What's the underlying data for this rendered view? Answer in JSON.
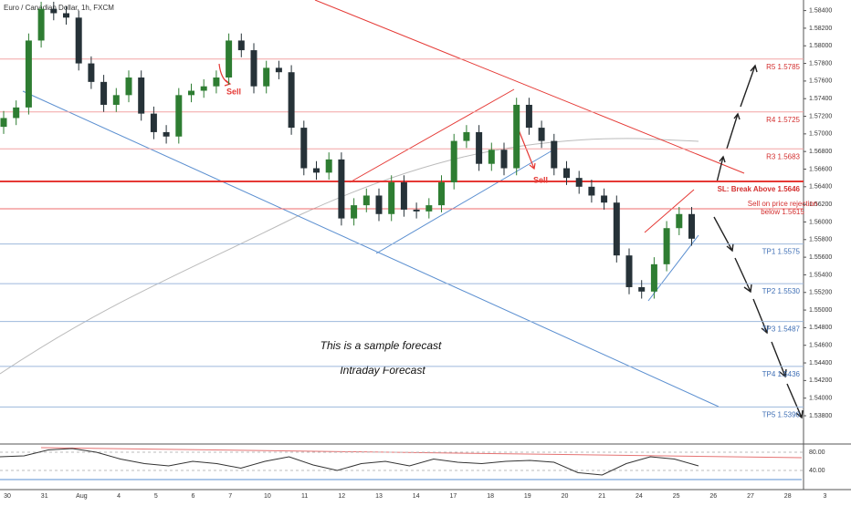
{
  "chart_data": {
    "type": "candlestick",
    "title": "Euro / Canadian Dollar, 1h, FXCM",
    "annotations": [
      "This is a sample forecast",
      "Intraday Forecast"
    ],
    "sell_labels": [
      "Sell",
      "Sell"
    ],
    "up_color": "#2e7d32",
    "down_color": "#263238",
    "open": [
      1.5708,
      1.5718,
      1.573,
      1.5806,
      1.5842,
      1.5837,
      1.5832,
      1.578,
      1.5759,
      1.5733,
      1.5744,
      1.5764,
      1.5723,
      1.5702,
      1.5697,
      1.5744,
      1.5749,
      1.5754,
      1.5764,
      1.5806,
      1.5795,
      1.5754,
      1.5775,
      1.577,
      1.5707,
      1.5661,
      1.5656,
      1.5671,
      1.5604,
      1.5619,
      1.563,
      1.5609,
      1.5645,
      1.5614,
      1.5612,
      1.5619,
      1.5645,
      1.5692,
      1.5702,
      1.5666,
      1.5682,
      1.5661,
      1.5733,
      1.5707,
      1.5692,
      1.5661,
      1.565,
      1.564,
      1.563,
      1.5622,
      1.5562,
      1.5526,
      1.5521,
      1.5552,
      1.5593,
      1.5609
    ],
    "high": [
      1.5726,
      1.5738,
      1.5814,
      1.585,
      1.585,
      1.5845,
      1.584,
      1.5788,
      1.5767,
      1.5752,
      1.5772,
      1.5772,
      1.5731,
      1.571,
      1.5752,
      1.5757,
      1.5762,
      1.5772,
      1.5814,
      1.5814,
      1.5803,
      1.5783,
      1.5783,
      1.5778,
      1.5715,
      1.5669,
      1.5679,
      1.5679,
      1.5627,
      1.5638,
      1.5638,
      1.5653,
      1.5653,
      1.5622,
      1.5627,
      1.5653,
      1.57,
      1.571,
      1.571,
      1.569,
      1.569,
      1.5741,
      1.5741,
      1.5715,
      1.57,
      1.5669,
      1.5658,
      1.5648,
      1.5638,
      1.563,
      1.557,
      1.5534,
      1.556,
      1.5601,
      1.5617,
      1.5617
    ],
    "low": [
      1.57,
      1.571,
      1.5722,
      1.5798,
      1.5829,
      1.5824,
      1.5772,
      1.5751,
      1.5725,
      1.5725,
      1.5736,
      1.5715,
      1.5694,
      1.5689,
      1.5689,
      1.5736,
      1.5741,
      1.5746,
      1.5756,
      1.5787,
      1.5746,
      1.5746,
      1.5762,
      1.5699,
      1.5653,
      1.5648,
      1.5648,
      1.5596,
      1.5596,
      1.5611,
      1.5601,
      1.5601,
      1.5606,
      1.5604,
      1.5604,
      1.5611,
      1.5637,
      1.5684,
      1.5658,
      1.5658,
      1.5653,
      1.5653,
      1.5699,
      1.5684,
      1.5653,
      1.5642,
      1.5632,
      1.5622,
      1.5614,
      1.5554,
      1.5518,
      1.5513,
      1.5513,
      1.5544,
      1.5585,
      1.5573
    ],
    "close": [
      1.5718,
      1.573,
      1.5806,
      1.5842,
      1.5837,
      1.5832,
      1.578,
      1.5759,
      1.5733,
      1.5744,
      1.5764,
      1.5723,
      1.5702,
      1.5697,
      1.5744,
      1.5749,
      1.5754,
      1.5764,
      1.5806,
      1.5795,
      1.5754,
      1.5775,
      1.577,
      1.5707,
      1.5661,
      1.5656,
      1.5671,
      1.5604,
      1.5619,
      1.563,
      1.5609,
      1.5645,
      1.5614,
      1.5612,
      1.5619,
      1.5645,
      1.5692,
      1.5702,
      1.5666,
      1.5682,
      1.5661,
      1.5733,
      1.5707,
      1.5692,
      1.5661,
      1.565,
      1.564,
      1.563,
      1.5622,
      1.5562,
      1.5526,
      1.5521,
      1.5552,
      1.5593,
      1.5609,
      1.5581
    ],
    "ylim": [
      1.535,
      1.5852
    ],
    "yticks": [
      {
        "value": 1.538,
        "label": "1.53800"
      },
      {
        "value": 1.54,
        "label": "1.54000"
      },
      {
        "value": 1.542,
        "label": "1.54200"
      },
      {
        "value": 1.544,
        "label": "1.54400"
      },
      {
        "value": 1.546,
        "label": "1.54600"
      },
      {
        "value": 1.548,
        "label": "1.54800"
      },
      {
        "value": 1.55,
        "label": "1.55000"
      },
      {
        "value": 1.552,
        "label": "1.55200"
      },
      {
        "value": 1.554,
        "label": "1.55400"
      },
      {
        "value": 1.556,
        "label": "1.55600"
      },
      {
        "value": 1.558,
        "label": "1.55800"
      },
      {
        "value": 1.56,
        "label": "1.56000"
      },
      {
        "value": 1.562,
        "label": "1.56200"
      },
      {
        "value": 1.564,
        "label": "1.56400"
      },
      {
        "value": 1.566,
        "label": "1.56600"
      },
      {
        "value": 1.568,
        "label": "1.56800"
      },
      {
        "value": 1.57,
        "label": "1.57000"
      },
      {
        "value": 1.572,
        "label": "1.57200"
      },
      {
        "value": 1.574,
        "label": "1.57400"
      },
      {
        "value": 1.576,
        "label": "1.57600"
      },
      {
        "value": 1.578,
        "label": "1.57800"
      },
      {
        "value": 1.58,
        "label": "1.58000"
      },
      {
        "value": 1.582,
        "label": "1.58200"
      },
      {
        "value": 1.584,
        "label": "1.58400"
      }
    ],
    "levels": [
      {
        "label": "R5 1.5785",
        "value": 1.5785,
        "color": "#f2a3a3"
      },
      {
        "label": "R4 1.5725",
        "value": 1.5725,
        "color": "#f2a3a3"
      },
      {
        "label": "R3 1.5683",
        "value": 1.5683,
        "color": "#f2a3a3"
      },
      {
        "label": "SL: Break Above 1.5646",
        "value": 1.5646,
        "color": "#e53935"
      },
      {
        "label": [
          "Sell on price rejection",
          "below 1.5615"
        ],
        "value": 1.5615,
        "color": "#ef6b6b"
      },
      {
        "label": "TP1 1.5575",
        "value": 1.5575,
        "color": "#9db8dc"
      },
      {
        "label": "TP2 1.5530",
        "value": 1.553,
        "color": "#9db8dc"
      },
      {
        "label": "TP3 1.5487",
        "value": 1.5487,
        "color": "#9db8dc"
      },
      {
        "label": "TP4 1.5436",
        "value": 1.5436,
        "color": "#9db8dc"
      },
      {
        "label": "TP5 1.5390",
        "value": 1.539,
        "color": "#9db8dc"
      }
    ],
    "xlabels": [
      "30",
      "31",
      "Aug",
      "4",
      "5",
      "6",
      "7",
      "10",
      "11",
      "12",
      "13",
      "14",
      "17",
      "18",
      "19",
      "20",
      "21",
      "24",
      "25",
      "26",
      "27",
      "28",
      "3"
    ],
    "rsi": {
      "values": [
        70,
        72,
        85,
        88,
        80,
        65,
        55,
        50,
        60,
        55,
        45,
        60,
        70,
        52,
        40,
        55,
        60,
        50,
        65,
        58,
        55,
        60,
        62,
        58,
        35,
        30,
        55,
        70,
        65,
        50
      ],
      "color": "#333333",
      "ylim": [
        12,
        96
      ],
      "yticks": [
        {
          "value": 80,
          "label": "80.00"
        },
        {
          "value": 40,
          "label": "40.00"
        }
      ]
    }
  }
}
